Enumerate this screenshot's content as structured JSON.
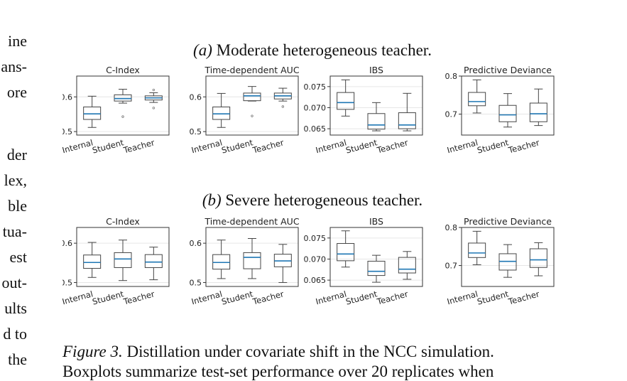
{
  "left_text": [
    "ine",
    "ans-",
    "ore",
    "der",
    "lex,",
    "ble",
    "tua-",
    "est",
    "out-",
    "ults",
    "d to",
    "the"
  ],
  "panel_a": {
    "label": "(a)",
    "title": "Moderate heterogeneous teacher."
  },
  "panel_b": {
    "label": "(b)",
    "title": "Severe heterogeneous teacher."
  },
  "caption": {
    "label": "Figure 3.",
    "line1": "Distillation under covariate shift in the NCC simulation.",
    "line2": "Boxplots summarize test-set performance over 20 replicates when"
  },
  "chart_data": [
    {
      "type": "box",
      "panel": "a",
      "title": "C-Index",
      "categories": [
        "Internal",
        "Student",
        "Teacher"
      ],
      "ylim": [
        0.49,
        0.66
      ],
      "yticks": [
        0.5,
        0.6
      ],
      "ytick_labels": [
        "0.5",
        "0.6"
      ],
      "boxes": [
        {
          "whislo": 0.512,
          "q1": 0.535,
          "med": 0.551,
          "q3": 0.571,
          "whishi": 0.602,
          "fliers": []
        },
        {
          "whislo": 0.582,
          "q1": 0.588,
          "med": 0.595,
          "q3": 0.606,
          "whishi": 0.622,
          "fliers": [
            0.543
          ]
        },
        {
          "whislo": 0.584,
          "q1": 0.591,
          "med": 0.597,
          "q3": 0.603,
          "whishi": 0.612,
          "fliers": [
            0.568,
            0.62
          ]
        }
      ]
    },
    {
      "type": "box",
      "panel": "a",
      "title": "Time-dependent AUC",
      "categories": [
        "Internal",
        "Student",
        "Teacher"
      ],
      "ylim": [
        0.49,
        0.66
      ],
      "yticks": [
        0.5,
        0.6
      ],
      "ytick_labels": [
        "0.5",
        "0.6"
      ],
      "boxes": [
        {
          "whislo": 0.512,
          "q1": 0.535,
          "med": 0.551,
          "q3": 0.571,
          "whishi": 0.61,
          "fliers": []
        },
        {
          "whislo": 0.588,
          "q1": 0.589,
          "med": 0.603,
          "q3": 0.611,
          "whishi": 0.63,
          "fliers": [
            0.545
          ]
        },
        {
          "whislo": 0.588,
          "q1": 0.594,
          "med": 0.603,
          "q3": 0.611,
          "whishi": 0.625,
          "fliers": [
            0.572
          ]
        }
      ]
    },
    {
      "type": "box",
      "panel": "a",
      "title": "IBS",
      "categories": [
        "Internal",
        "Student",
        "Teacher"
      ],
      "ylim": [
        0.0635,
        0.0775
      ],
      "yticks": [
        0.065,
        0.07,
        0.075
      ],
      "ytick_labels": [
        "0.065",
        "0.070",
        "0.075"
      ],
      "boxes": [
        {
          "whislo": 0.068,
          "q1": 0.0696,
          "med": 0.0712,
          "q3": 0.0736,
          "whishi": 0.0766,
          "fliers": []
        },
        {
          "whislo": 0.0645,
          "q1": 0.0649,
          "med": 0.0659,
          "q3": 0.0686,
          "whishi": 0.0712,
          "fliers": []
        },
        {
          "whislo": 0.0645,
          "q1": 0.065,
          "med": 0.0659,
          "q3": 0.0688,
          "whishi": 0.0734,
          "fliers": []
        }
      ]
    },
    {
      "type": "box",
      "panel": "a",
      "title": "Predictive Deviance",
      "categories": [
        "Internal",
        "Student",
        "Teacher"
      ],
      "ylim": [
        0.645,
        0.8
      ],
      "yticks": [
        0.7,
        0.8
      ],
      "ytick_labels": [
        "0.7",
        "0.8"
      ],
      "boxes": [
        {
          "whislo": 0.703,
          "q1": 0.722,
          "med": 0.733,
          "q3": 0.757,
          "whishi": 0.79,
          "fliers": []
        },
        {
          "whislo": 0.666,
          "q1": 0.68,
          "med": 0.698,
          "q3": 0.723,
          "whishi": 0.754,
          "fliers": []
        },
        {
          "whislo": 0.67,
          "q1": 0.68,
          "med": 0.701,
          "q3": 0.729,
          "whishi": 0.766,
          "fliers": []
        }
      ]
    },
    {
      "type": "box",
      "panel": "b",
      "title": "C-Index",
      "categories": [
        "Internal",
        "Student",
        "Teacher"
      ],
      "ylim": [
        0.49,
        0.64
      ],
      "yticks": [
        0.5,
        0.6
      ],
      "ytick_labels": [
        "0.5",
        "0.6"
      ],
      "boxes": [
        {
          "whislo": 0.513,
          "q1": 0.536,
          "med": 0.551,
          "q3": 0.57,
          "whishi": 0.602,
          "fliers": []
        },
        {
          "whislo": 0.505,
          "q1": 0.538,
          "med": 0.56,
          "q3": 0.576,
          "whishi": 0.608,
          "fliers": []
        },
        {
          "whislo": 0.507,
          "q1": 0.538,
          "med": 0.552,
          "q3": 0.571,
          "whishi": 0.59,
          "fliers": []
        }
      ]
    },
    {
      "type": "box",
      "panel": "b",
      "title": "Time-dependent AUC",
      "categories": [
        "Internal",
        "Student",
        "Teacher"
      ],
      "ylim": [
        0.49,
        0.64
      ],
      "yticks": [
        0.5,
        0.6
      ],
      "ytick_labels": [
        "0.5",
        "0.6"
      ],
      "boxes": [
        {
          "whislo": 0.51,
          "q1": 0.534,
          "med": 0.551,
          "q3": 0.571,
          "whishi": 0.608,
          "fliers": []
        },
        {
          "whislo": 0.51,
          "q1": 0.535,
          "med": 0.564,
          "q3": 0.576,
          "whishi": 0.612,
          "fliers": []
        },
        {
          "whislo": 0.5,
          "q1": 0.54,
          "med": 0.555,
          "q3": 0.572,
          "whishi": 0.597,
          "fliers": []
        }
      ]
    },
    {
      "type": "box",
      "panel": "b",
      "title": "IBS",
      "categories": [
        "Internal",
        "Student",
        "Teacher"
      ],
      "ylim": [
        0.0635,
        0.0775
      ],
      "yticks": [
        0.065,
        0.07,
        0.075
      ],
      "ytick_labels": [
        "0.065",
        "0.070",
        "0.075"
      ],
      "boxes": [
        {
          "whislo": 0.0681,
          "q1": 0.0696,
          "med": 0.0712,
          "q3": 0.0737,
          "whishi": 0.0767,
          "fliers": []
        },
        {
          "whislo": 0.0645,
          "q1": 0.0661,
          "med": 0.0671,
          "q3": 0.0695,
          "whishi": 0.0709,
          "fliers": []
        },
        {
          "whislo": 0.0652,
          "q1": 0.0667,
          "med": 0.0676,
          "q3": 0.0704,
          "whishi": 0.0718,
          "fliers": []
        }
      ]
    },
    {
      "type": "box",
      "panel": "b",
      "title": "Predictive Deviance",
      "categories": [
        "Internal",
        "Student",
        "Teacher"
      ],
      "ylim": [
        0.645,
        0.8
      ],
      "yticks": [
        0.7,
        0.8
      ],
      "ytick_labels": [
        "0.7",
        "0.8"
      ],
      "boxes": [
        {
          "whislo": 0.702,
          "q1": 0.721,
          "med": 0.733,
          "q3": 0.759,
          "whishi": 0.79,
          "fliers": []
        },
        {
          "whislo": 0.669,
          "q1": 0.688,
          "med": 0.711,
          "q3": 0.731,
          "whishi": 0.755,
          "fliers": []
        },
        {
          "whislo": 0.673,
          "q1": 0.695,
          "med": 0.715,
          "q3": 0.744,
          "whishi": 0.76,
          "fliers": []
        }
      ]
    }
  ],
  "colors": {
    "median": "#1f77b4",
    "box": "#444444",
    "axis": "#333333",
    "grid": "#e6e6e6",
    "text": "#222222"
  }
}
